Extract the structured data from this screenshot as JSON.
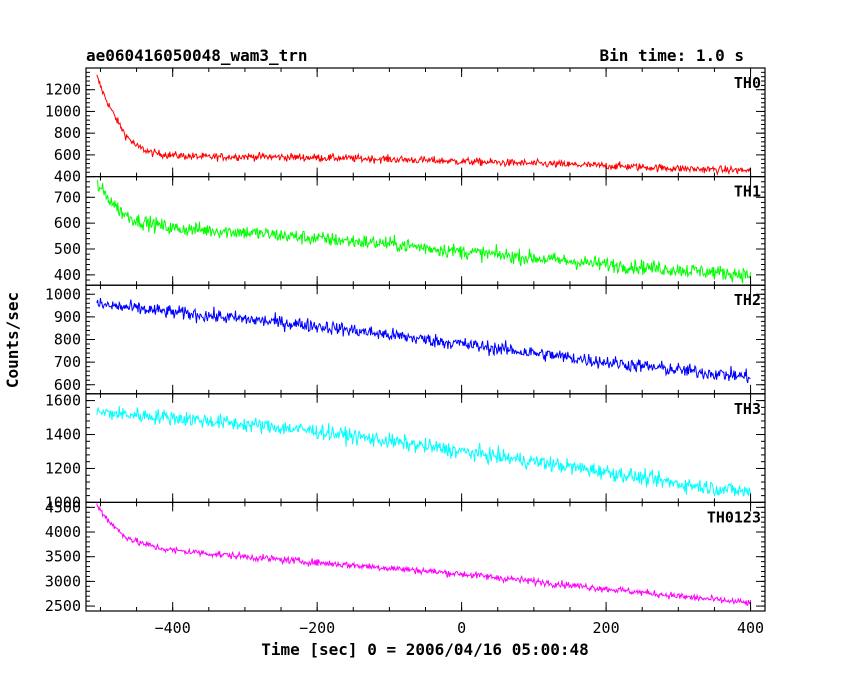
{
  "header": {
    "title": "ae060416050048_wam3_trn",
    "bin_time": "Bin time: 1.0 s"
  },
  "axes": {
    "ylabel": "Counts/sec",
    "xlabel": "Time [sec] 0 = 2006/04/16 05:00:48"
  },
  "chart_data": {
    "type": "line",
    "title": "ae060416050048_wam3_trn",
    "xlabel": "Time [sec] 0 = 2006/04/16 05:00:48",
    "ylabel": "Counts/sec",
    "xlim": [
      -520,
      420
    ],
    "x_ticks": [
      -400,
      -200,
      0,
      200,
      400
    ],
    "x_step": 1.0,
    "grid": false,
    "panels": [
      {
        "name": "TH0",
        "color": "#ff0000",
        "ylim": [
          400,
          1400
        ],
        "y_ticks": [
          400,
          600,
          800,
          1000,
          1200
        ],
        "x": [
          -505,
          -495,
          -480,
          -465,
          -450,
          -430,
          -400,
          -350,
          -300,
          -200,
          -100,
          0,
          100,
          200,
          300,
          400
        ],
        "y": [
          1320,
          1150,
          950,
          780,
          680,
          620,
          595,
          580,
          585,
          575,
          560,
          540,
          520,
          500,
          475,
          455
        ],
        "noise": 35
      },
      {
        "name": "TH1",
        "color": "#00ff00",
        "ylim": [
          360,
          780
        ],
        "y_ticks": [
          400,
          500,
          600,
          700
        ],
        "x": [
          -505,
          -490,
          -470,
          -450,
          -400,
          -300,
          -200,
          -100,
          0,
          100,
          200,
          300,
          400
        ],
        "y": [
          750,
          700,
          640,
          610,
          580,
          565,
          540,
          520,
          490,
          465,
          440,
          420,
          400
        ],
        "noise": 28
      },
      {
        "name": "TH2",
        "color": "#0000ff",
        "ylim": [
          560,
          1040
        ],
        "y_ticks": [
          600,
          700,
          800,
          900,
          1000
        ],
        "x": [
          -505,
          -400,
          -300,
          -200,
          -100,
          0,
          100,
          200,
          300,
          400
        ],
        "y": [
          955,
          920,
          890,
          860,
          820,
          780,
          740,
          700,
          665,
          635
        ],
        "noise": 30
      },
      {
        "name": "TH3",
        "color": "#00ffff",
        "ylim": [
          1000,
          1640
        ],
        "y_ticks": [
          1000,
          1200,
          1400,
          1600
        ],
        "x": [
          -505,
          -400,
          -300,
          -200,
          -100,
          0,
          100,
          200,
          300,
          400
        ],
        "y": [
          1530,
          1500,
          1460,
          1420,
          1360,
          1300,
          1240,
          1180,
          1110,
          1060
        ],
        "noise": 45
      },
      {
        "name": "TH0123",
        "color": "#ff00ff",
        "ylim": [
          2400,
          4600
        ],
        "y_ticks": [
          2500,
          3000,
          3500,
          4000,
          4500
        ],
        "x": [
          -505,
          -490,
          -470,
          -450,
          -420,
          -400,
          -300,
          -200,
          -100,
          0,
          100,
          200,
          300,
          400
        ],
        "y": [
          4550,
          4250,
          3950,
          3800,
          3680,
          3630,
          3500,
          3380,
          3270,
          3150,
          3000,
          2850,
          2700,
          2560
        ],
        "noise": 70
      }
    ]
  }
}
